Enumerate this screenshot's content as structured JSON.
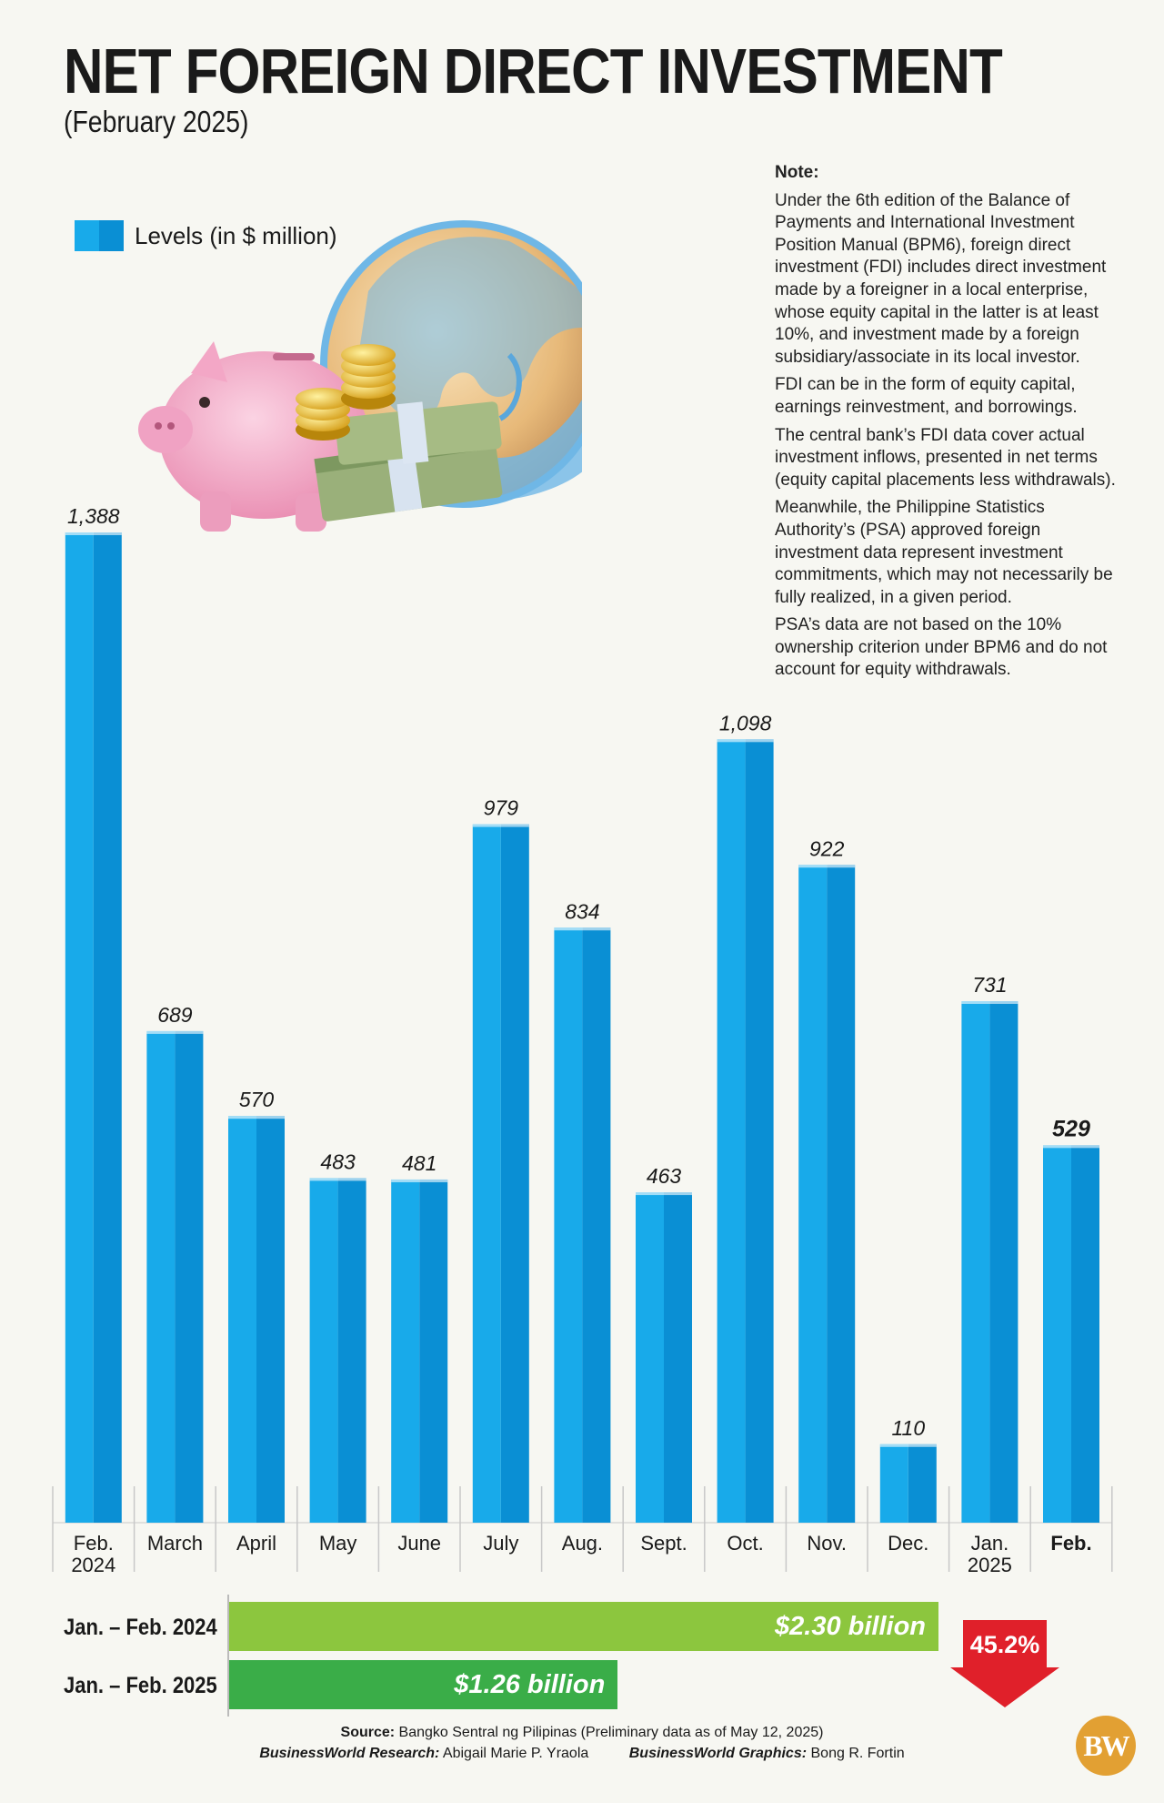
{
  "header": {
    "title": "NET FOREIGN DIRECT INVESTMENT",
    "subtitle": "(February 2025)"
  },
  "legend": {
    "label": "Levels (in $ million)"
  },
  "note": {
    "heading": "Note:",
    "paragraphs": [
      "Under the 6th edition of the Balance of Payments and International Investment Position Manual (BPM6), foreign direct investment (FDI) includes direct investment made by a foreigner in a local enterprise, whose equity capital in the latter is at least 10%, and investment made by a foreign subsidiary/associate in its local investor.",
      "FDI can be in the form of equity capital, earnings reinvestment, and borrowings.",
      "The central bank’s FDI data cover actual investment inflows, presented in net terms (equity capital placements less withdrawals).",
      "Meanwhile, the Philippine Statistics Authority’s (PSA) approved foreign investment data represent investment commitments, which may not necessarily be fully realized, in a given period.",
      "PSA’s data are not based on the 10% ownership criterion under BPM6 and do not account for equity withdrawals."
    ]
  },
  "chart_data": {
    "type": "bar",
    "categories": [
      "Feb.\n2024",
      "March",
      "April",
      "May",
      "June",
      "July",
      "Aug.",
      "Sept.",
      "Oct.",
      "Nov.",
      "Dec.",
      "Jan.\n2025",
      "Feb."
    ],
    "values": [
      1388,
      689,
      570,
      483,
      481,
      979,
      834,
      463,
      1098,
      922,
      110,
      731,
      529
    ],
    "value_labels": [
      "1,388",
      "689",
      "570",
      "483",
      "481",
      "979",
      "834",
      "463",
      "1,098",
      "922",
      "110",
      "731",
      "529"
    ],
    "highlight_index": 12,
    "series": [
      {
        "name": "Levels (in $ million)",
        "values": [
          1388,
          689,
          570,
          483,
          481,
          979,
          834,
          463,
          1098,
          922,
          110,
          731,
          529
        ]
      }
    ],
    "ylim": [
      0,
      1400
    ],
    "grid": false,
    "legend_position": "top-left",
    "colors": {
      "bar_light": "#18aaea",
      "bar_dark": "#0a8fd4"
    }
  },
  "summary": {
    "rows": [
      {
        "label": "Jan. – Feb. 2024",
        "value": 2.3,
        "value_label": "$2.30 billion",
        "color": "#8cc63e"
      },
      {
        "label": "Jan. – Feb. 2025",
        "value": 1.26,
        "value_label": "$1.26 billion",
        "color": "#3aad48"
      }
    ],
    "change": "45.2%",
    "change_direction": "down",
    "change_color": "#e0202a"
  },
  "footer": {
    "source": "Bangko Sentral ng Pilipinas (Preliminary data as of May 12, 2025)",
    "source_prefix": "Source:",
    "research_label": "BusinessWorld Research:",
    "research_name": "Abigail Marie P. Yraola",
    "graphics_label": "BusinessWorld Graphics:",
    "graphics_name": "Bong R. Fortin",
    "logo": "BW"
  }
}
